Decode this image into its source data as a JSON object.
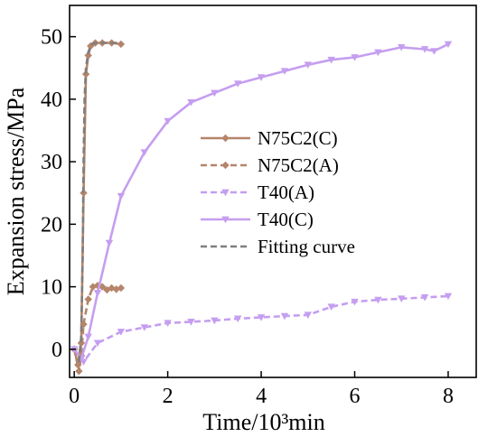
{
  "chart_data": {
    "type": "line",
    "xlabel": "Time/10³min",
    "ylabel": "Expansion stress/MPa",
    "xlim": [
      -0.1,
      8.6
    ],
    "ylim": [
      -4.5,
      55
    ],
    "xticks": [
      0,
      2,
      4,
      6,
      8
    ],
    "yticks": [
      0,
      10,
      20,
      30,
      40,
      50
    ],
    "grid": false,
    "legend_position": "center-right",
    "series": [
      {
        "name": "N75C2(C)",
        "color": "#b5856a",
        "dash": "solid",
        "marker": "diamond",
        "x": [
          0,
          0.08,
          0.15,
          0.2,
          0.25,
          0.3,
          0.35,
          0.45,
          0.6,
          0.8,
          1.0
        ],
        "y": [
          0,
          -2.5,
          1,
          25,
          44,
          47,
          48.5,
          49,
          49,
          49,
          48.8
        ]
      },
      {
        "name": "N75C2(A)",
        "color": "#b5856a",
        "dash": "dashed",
        "marker": "diamond",
        "x": [
          0,
          0.1,
          0.15,
          0.2,
          0.3,
          0.4,
          0.5,
          0.6,
          0.7,
          0.8,
          0.9,
          1.0
        ],
        "y": [
          0,
          -3.5,
          -1,
          4,
          8,
          10,
          10.2,
          10,
          9.5,
          9.8,
          9.6,
          9.8
        ]
      },
      {
        "name": "T40(A)",
        "color": "#c59ef0",
        "dash": "dashed",
        "marker": "triangle-down",
        "x": [
          0,
          0.2,
          0.5,
          1,
          1.5,
          2,
          2.5,
          3,
          3.5,
          4,
          4.5,
          5,
          5.5,
          6,
          6.5,
          7,
          7.5,
          8
        ],
        "y": [
          0,
          -2,
          1,
          2.8,
          3.5,
          4.2,
          4.4,
          4.6,
          4.9,
          5.1,
          5.3,
          5.5,
          6.8,
          7.6,
          7.9,
          8.1,
          8.3,
          8.5
        ]
      },
      {
        "name": "T40(C)",
        "color": "#c59ef0",
        "dash": "solid",
        "marker": "triangle-down",
        "x": [
          0,
          0.15,
          0.3,
          0.5,
          0.75,
          1,
          1.5,
          2,
          2.5,
          3,
          3.5,
          4,
          4.5,
          5,
          5.5,
          6,
          6.5,
          7,
          7.5,
          7.7,
          8
        ],
        "y": [
          0,
          -1.5,
          2,
          9,
          17,
          24.5,
          31.5,
          36.5,
          39.5,
          41,
          42.5,
          43.5,
          44.5,
          45.5,
          46.3,
          46.7,
          47.5,
          48.3,
          48,
          47.7,
          48.8
        ]
      },
      {
        "name": "Fitting curve",
        "color": "#7f7f7f",
        "dash": "dashed",
        "marker": "none",
        "x": [
          0.1,
          0.15,
          0.18,
          0.2,
          0.22,
          0.25,
          0.3,
          0.35,
          0.4,
          0.5,
          0.6,
          0.8,
          1.0
        ],
        "y": [
          -2,
          2,
          15,
          30,
          40,
          45,
          47.5,
          48.5,
          48.9,
          49,
          49,
          49,
          49
        ]
      }
    ]
  }
}
